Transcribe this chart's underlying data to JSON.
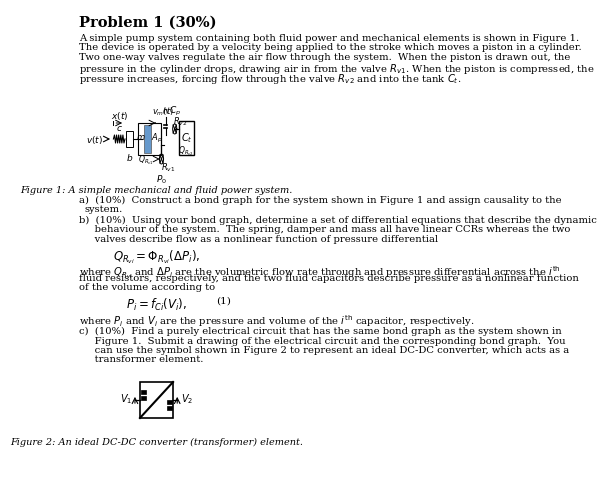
{
  "title": "Problem 1 (30%)",
  "body_text": "A simple pump system containing both fluid power and mechanical elements is shown in Figure 1.\nThe device is operated by a velocity being applied to the stroke which moves a piston in a cylinder.\nTwo one-way valves regulate the air flow through the system.  When the piston is drawn out, the\npressure in the cylinder drops, drawing air in from the valve $R_{v1}$. When the piston is compressed, the\npressure increases, forcing flow through the valve $R_{v2}$ and into the tank $C_t$.",
  "fig1_caption": "Figure 1: A simple mechanical and fluid power system.",
  "part_a": "a)  (10%)  Construct a bond graph for the system shown in Figure 1 and assign causality to the\n     system.",
  "part_b_intro": "b)  (10%)  Using your bond graph, determine a set of differential equations that describe the dynamic\n     behaviour of the system.  The spring, damper and mass all have linear CCRs whereas the two\n     valves describe flow as a nonlinear function of pressure differential",
  "eq1": "$Q_{R_{vi}} = \\Phi_{R_{vi}}(\\Delta P_i),$",
  "part_b_mid": "where $Q_{R_{vi}}$ and $\\Delta P_i$ are the volumetric flow rate through and pressure differential across the $i^{\\mathrm{th}}$\nfluid resistors, respectively, and the two fluid capacitors describe pressure as a nonlinear function\nof the volume according to",
  "eq2": "$P_i = f_{Ci}(V_i),$",
  "eq2_num": "(1)",
  "part_b_end": "where $P_i$ and $V_i$ are the pressure and volume of the $i^{\\mathrm{th}}$ capacitor, respectively.",
  "part_c": "c)  (10%)  Find a purely electrical circuit that has the same bond graph as the system shown in\n     Figure 1.  Submit a drawing of the electrical circuit and the corresponding bond graph.  You\n     can use the symbol shown in Figure 2 to represent an ideal DC-DC converter, which acts as a\n     transformer element.",
  "fig2_caption": "Figure 2: An ideal DC-DC converter (transformer) element.",
  "bg_color": "#ffffff",
  "text_color": "#000000",
  "title_color": "#000000",
  "font_size_title": 11,
  "font_size_body": 7.5
}
